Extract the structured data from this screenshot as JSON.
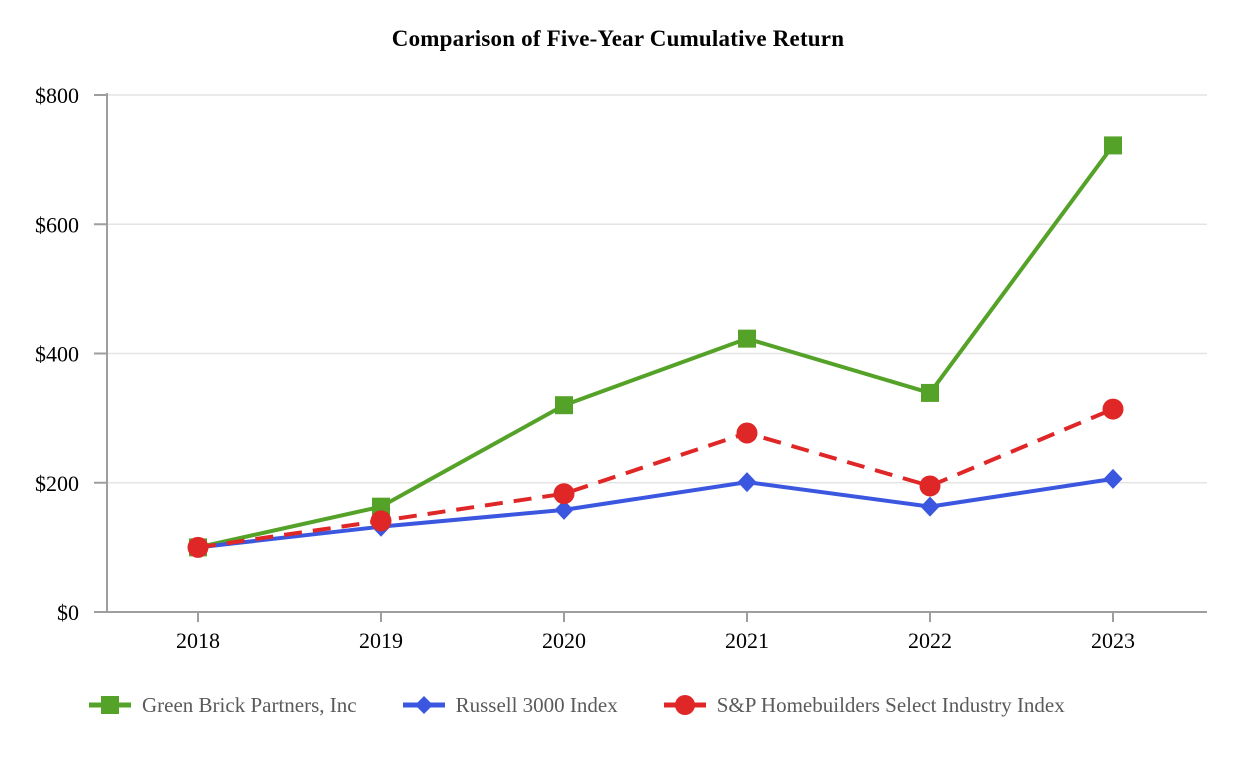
{
  "page": {
    "title": "Comparison of Five-Year Cumulative Return"
  },
  "chart_data": {
    "type": "line",
    "title": "Comparison of Five-Year Cumulative Return",
    "xlabel": "",
    "ylabel": "",
    "categories": [
      "2018",
      "2019",
      "2020",
      "2021",
      "2022",
      "2023"
    ],
    "ylim": [
      0,
      800
    ],
    "y_ticks": [
      {
        "value": 0,
        "label": "$0"
      },
      {
        "value": 200,
        "label": "$200"
      },
      {
        "value": 400,
        "label": "$400"
      },
      {
        "value": 600,
        "label": "$600"
      },
      {
        "value": 800,
        "label": "$800"
      }
    ],
    "grid": true,
    "legend_position": "bottom",
    "series": [
      {
        "name": "Green Brick Partners, Inc",
        "color": "#55A228",
        "marker": "square",
        "line_style": "solid",
        "values": [
          100,
          163,
          320,
          423,
          339,
          722
        ]
      },
      {
        "name": "Russell 3000 Index",
        "color": "#3B57DF",
        "marker": "diamond",
        "line_style": "solid",
        "values": [
          100,
          132,
          158,
          201,
          163,
          206
        ]
      },
      {
        "name": "S&P Homebuilders Select Industry Index",
        "color": "#DF2727",
        "marker": "circle",
        "line_style": "dashed",
        "values": [
          100,
          141,
          183,
          277,
          195,
          314
        ]
      }
    ]
  },
  "colors": {
    "grid": "#E4E4E4",
    "axis": "#9E9E9E",
    "tick_text": "#000000",
    "legend_text": "#5A5A5A"
  }
}
